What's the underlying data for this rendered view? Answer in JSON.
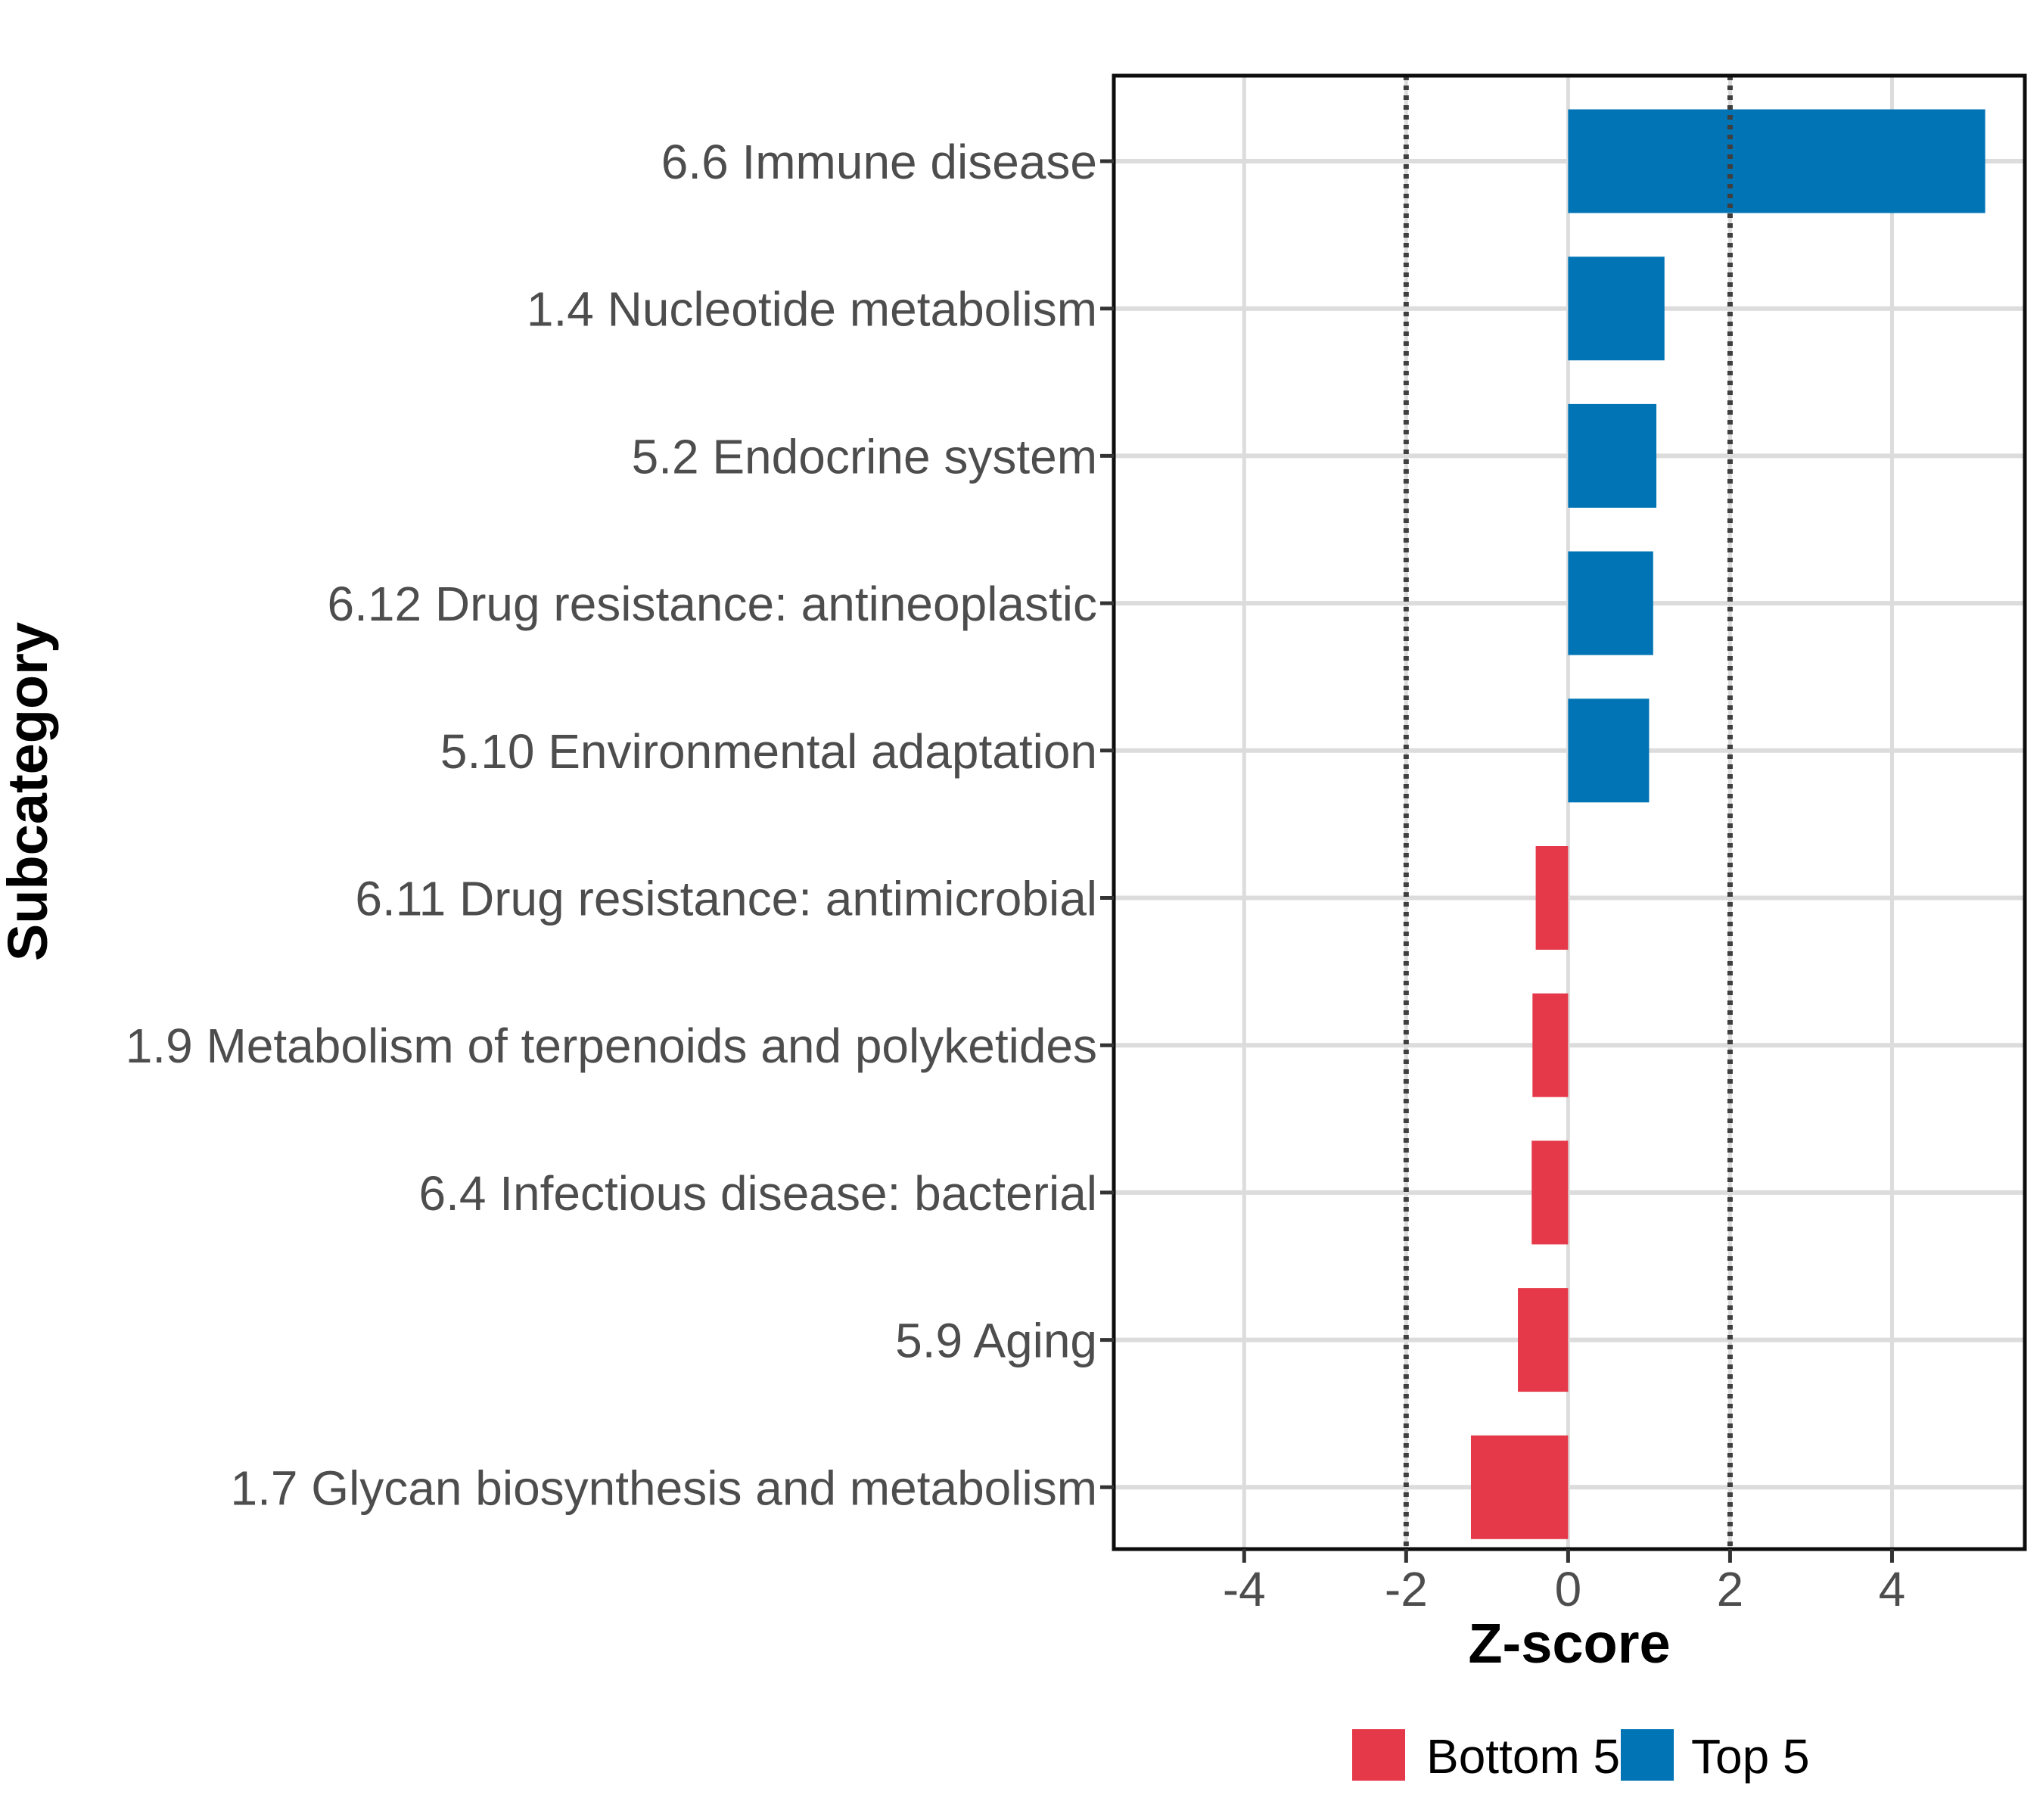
{
  "chart_data": {
    "type": "bar",
    "orientation": "horizontal",
    "title": "",
    "xlabel": "Z-score",
    "ylabel": "Subcategory",
    "categories": [
      "6.6 Immune disease",
      "1.4 Nucleotide metabolism",
      "5.2 Endocrine system",
      "6.12 Drug resistance: antineoplastic",
      "5.10 Environmental adaptation",
      "6.11 Drug resistance: antimicrobial",
      "1.9 Metabolism of terpenoids and polyketides",
      "6.4 Infectious disease: bacterial",
      "5.9 Aging",
      "1.7 Glycan biosynthesis and metabolism"
    ],
    "values": [
      5.15,
      1.19,
      1.09,
      1.05,
      1.0,
      -0.4,
      -0.44,
      -0.45,
      -0.62,
      -1.2
    ],
    "groups": [
      "Top 5",
      "Top 5",
      "Top 5",
      "Top 5",
      "Top 5",
      "Bottom 5",
      "Bottom 5",
      "Bottom 5",
      "Bottom 5",
      "Bottom 5"
    ],
    "x_ticks": [
      {
        "value": -4,
        "label": "-4"
      },
      {
        "value": -2,
        "label": "-2"
      },
      {
        "value": 0,
        "label": "0"
      },
      {
        "value": 2,
        "label": "2"
      },
      {
        "value": 4,
        "label": "4"
      }
    ],
    "xlim": [
      -5.61,
      5.64
    ],
    "reference_lines": [
      -2,
      2
    ],
    "grid": true,
    "legend_position": "bottom",
    "legend": [
      {
        "label": "Bottom 5",
        "color": "#E5394A"
      },
      {
        "label": "Top 5",
        "color": "#0074B5"
      }
    ]
  },
  "style_colors": {
    "grid": "#DCDCDC",
    "panel_border": "#0D0D0D",
    "reference_line": "#3F3F3F",
    "tick": "#333333",
    "tick_label": "#4D4D4D",
    "axis_title": "#000000",
    "legend_text": "#000000",
    "background": "#FFFFFF"
  }
}
